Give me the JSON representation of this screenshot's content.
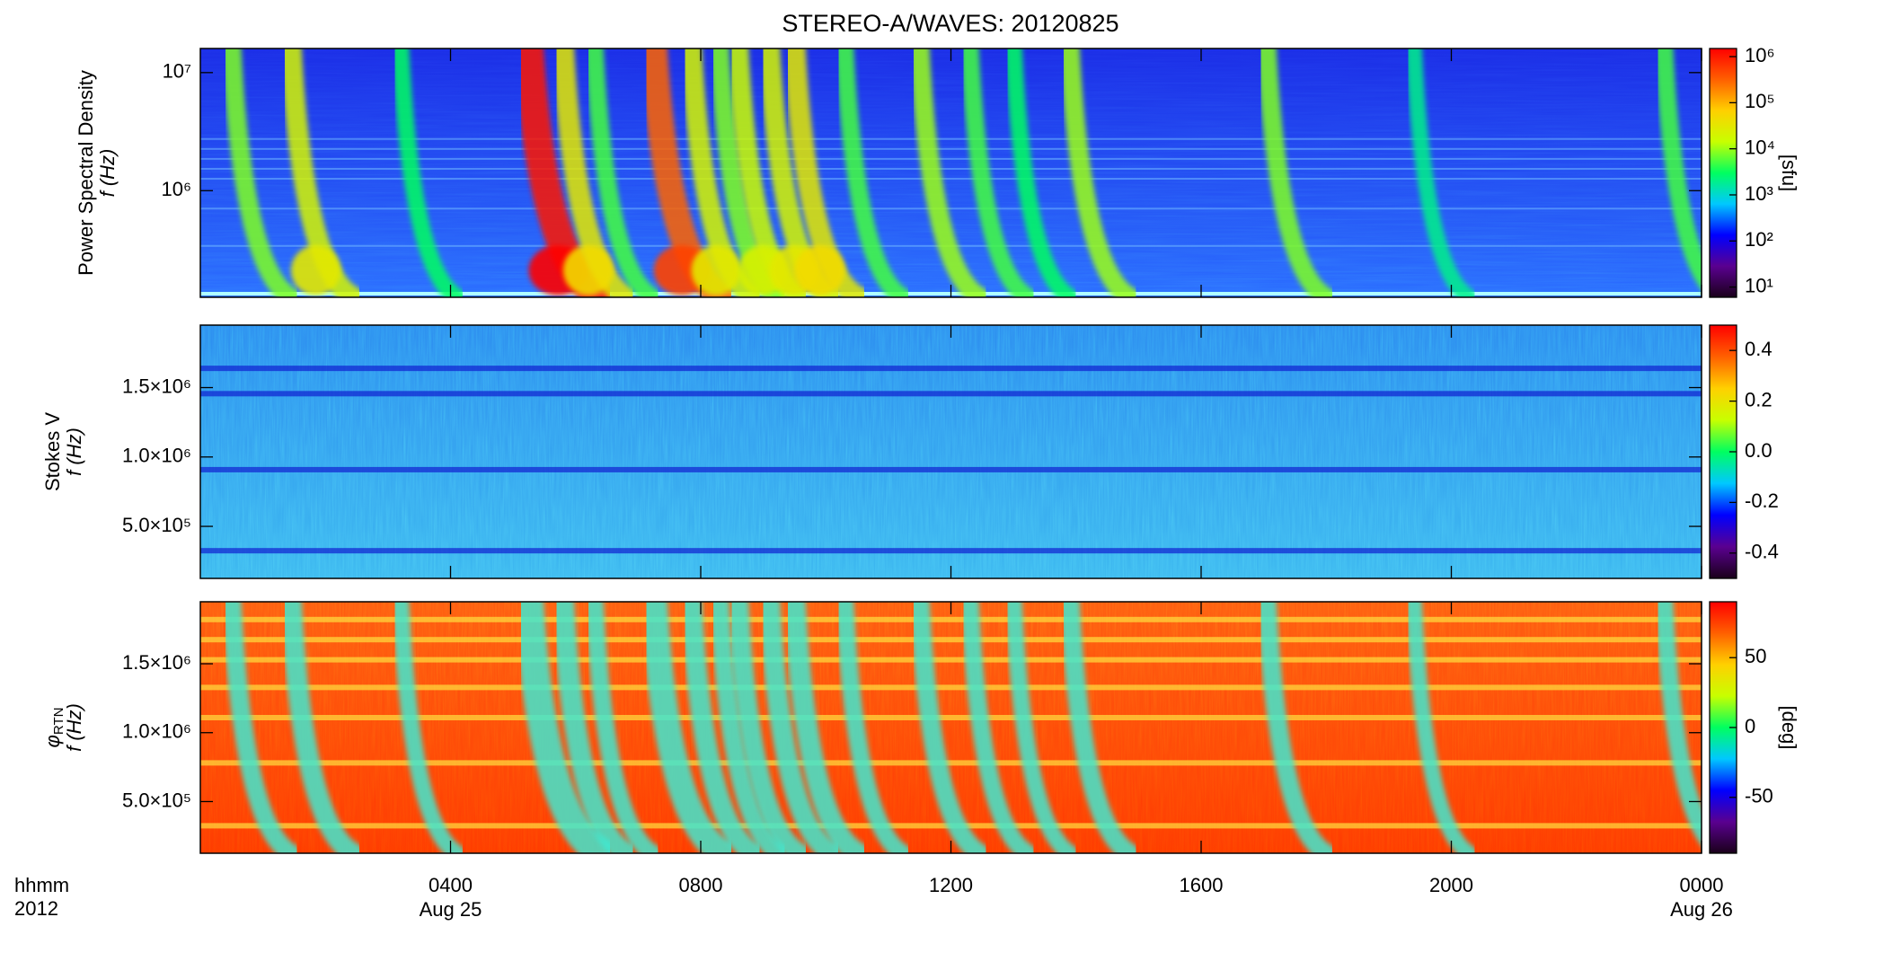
{
  "chart_data": {
    "type": "heatmap",
    "title": "STEREO-A/WAVES: 20120825",
    "colormap": [
      "#1a001a",
      "#5a0090",
      "#0000ff",
      "#00c8ff",
      "#00ff60",
      "#c8ff00",
      "#ffd000",
      "#ff6000",
      "#ff0000"
    ],
    "xlim": [
      0,
      24
    ],
    "xticks": [
      {
        "value": 4,
        "label": "0400"
      },
      {
        "value": 8,
        "label": "0800"
      },
      {
        "value": 12,
        "label": "1200"
      },
      {
        "value": 16,
        "label": "1600"
      },
      {
        "value": 20,
        "label": "2000"
      },
      {
        "value": 24,
        "label": "0000"
      }
    ],
    "date_labels": [
      {
        "value": 4,
        "label": "Aug 25"
      },
      {
        "value": 24,
        "label": "Aug 26"
      }
    ],
    "x_label": [
      "hhmm",
      "2012"
    ],
    "panels": [
      {
        "ylabel": [
          "Power Spectral Density",
          "f (Hz)"
        ],
        "ylog": true,
        "ylim": [
          125000,
          16000000
        ],
        "yticks": [
          {
            "value": 1000000,
            "label": "10⁶"
          },
          {
            "value": 10000000,
            "label": "10⁷"
          }
        ],
        "clabel": "[sfu]",
        "clog": true,
        "clim": [
          6,
          1500000
        ],
        "cticks": [
          {
            "value": 10,
            "label": "10¹"
          },
          {
            "value": 100,
            "label": "10²"
          },
          {
            "value": 1000,
            "label": "10³"
          },
          {
            "value": 10000,
            "label": "10⁴"
          },
          {
            "value": 100000,
            "label": "10⁵"
          },
          {
            "value": 1000000,
            "label": "10⁶"
          }
        ],
        "bursts": [
          {
            "time": 0.5,
            "intensity": 8000
          },
          {
            "time": 1.45,
            "intensity": 20000
          },
          {
            "time": 3.2,
            "intensity": 3000
          },
          {
            "time": 5.25,
            "intensity": 1000000
          },
          {
            "time": 5.8,
            "intensity": 30000
          },
          {
            "time": 6.3,
            "intensity": 5000
          },
          {
            "time": 7.25,
            "intensity": 300000
          },
          {
            "time": 7.85,
            "intensity": 20000
          },
          {
            "time": 8.3,
            "intensity": 8000
          },
          {
            "time": 8.6,
            "intensity": 15000
          },
          {
            "time": 9.1,
            "intensity": 20000
          },
          {
            "time": 9.5,
            "intensity": 30000
          },
          {
            "time": 10.3,
            "intensity": 5000
          },
          {
            "time": 11.5,
            "intensity": 10000
          },
          {
            "time": 12.3,
            "intensity": 5000
          },
          {
            "time": 13.0,
            "intensity": 3000
          },
          {
            "time": 13.9,
            "intensity": 10000
          },
          {
            "time": 17.05,
            "intensity": 8000
          },
          {
            "time": 19.4,
            "intensity": 2000
          },
          {
            "time": 23.4,
            "intensity": 5000
          }
        ]
      },
      {
        "ylabel": [
          "Stokes V",
          "f (Hz)"
        ],
        "ylog": false,
        "ylim": [
          125000,
          1950000
        ],
        "yticks": [
          {
            "value": 500000,
            "label": "5.0×10⁵"
          },
          {
            "value": 1000000,
            "label": "1.0×10⁶"
          },
          {
            "value": 1500000,
            "label": "1.5×10⁶"
          }
        ],
        "clabel": "",
        "clog": false,
        "clim": [
          -0.5,
          0.5
        ],
        "cticks": [
          -0.4,
          -0.2,
          {
            "value": 0,
            "label": "0.0"
          },
          0.2,
          0.4
        ]
      },
      {
        "ylabel": [
          "φ",
          "f (Hz)"
        ],
        "ylabel_sub": "RTN",
        "ylog": false,
        "ylim": [
          125000,
          1950000
        ],
        "yticks": [
          {
            "value": 500000,
            "label": "5.0×10⁵"
          },
          {
            "value": 1000000,
            "label": "1.0×10⁶"
          },
          {
            "value": 1500000,
            "label": "1.5×10⁶"
          }
        ],
        "clabel": "[deg]",
        "clog": false,
        "clim": [
          -90,
          90
        ],
        "cticks": [
          -50,
          0,
          50
        ]
      }
    ]
  }
}
